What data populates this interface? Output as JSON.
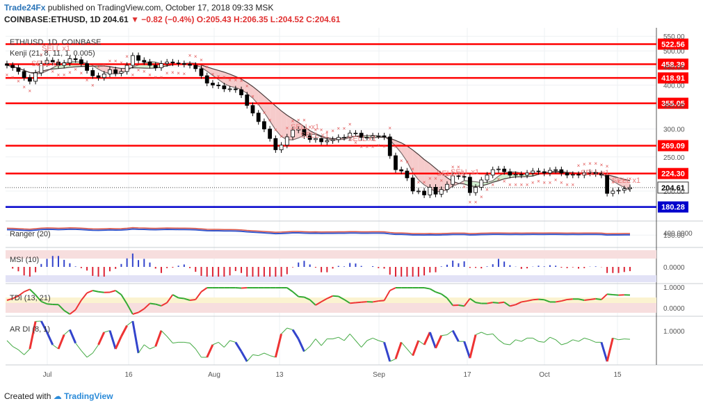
{
  "header": {
    "publisher": "Trade24Fx",
    "published_text": "published on TradingView.com, October 17, 2018 09:33 MSK",
    "symbol": "COINBASE:ETHUSD, 1D",
    "last": "204.61",
    "change": "▼ −0.82 (−0.4%)",
    "ohlc": "O:205.43 H:206.35 L:204.52 C:204.61"
  },
  "chart_labels": {
    "title": "ETH/USD, 1D, COINBASE",
    "kenji": "Kenji (21, 8, 11, 1, 0.005)",
    "ranger": "Ranger (20)",
    "msi": "MSI (10)",
    "tdi": "TDI (13, 21)",
    "ardi": "AR DI (8, 1)",
    "sell": "SELL x1"
  },
  "footer": {
    "created": "Created with",
    "brand": "TradingView"
  },
  "colors": {
    "resistance": "#ff0000",
    "support": "#0000cc",
    "cloud_red": "#f4c2c2",
    "cloud_green": "#c8ecc8"
  },
  "chart_data": [
    {
      "type": "candlestick",
      "title": "ETH/USD, 1D, COINBASE",
      "price_axis_ticks": [
        550,
        500,
        450,
        400,
        350,
        300,
        250,
        200,
        150
      ],
      "date_axis_ticks": [
        "Jul",
        "16",
        "Aug",
        "13",
        "Sep",
        "17",
        "Oct",
        "15"
      ],
      "horizontal_levels": [
        522.56,
        458.39,
        418.91,
        355.05,
        269.09,
        224.3,
        180.28
      ],
      "support_level": 180.28,
      "current_price": 204.61,
      "close_series": [
        455,
        448,
        437,
        420,
        410,
        433,
        460,
        470,
        465,
        455,
        462,
        475,
        472,
        460,
        440,
        425,
        420,
        430,
        442,
        432,
        437,
        455,
        485,
        470,
        465,
        455,
        448,
        460,
        465,
        462,
        460,
        458,
        455,
        445,
        425,
        405,
        400,
        398,
        390,
        390,
        388,
        375,
        350,
        333,
        315,
        300,
        282,
        262,
        270,
        285,
        298,
        300,
        287,
        280,
        282,
        276,
        278,
        280,
        284,
        284,
        292,
        292,
        284,
        284,
        287,
        287,
        285,
        252,
        230,
        228,
        218,
        200,
        200,
        195,
        205,
        196,
        202,
        209,
        221,
        220,
        219,
        198,
        205,
        215,
        222,
        230,
        231,
        227,
        222,
        223,
        222,
        225,
        228,
        227,
        225,
        229,
        230,
        225,
        222,
        223,
        222,
        225,
        226,
        224,
        222,
        197,
        200,
        201,
        203,
        204.61
      ],
      "sell_signal_count": 9
    },
    {
      "type": "line",
      "title": "Ranger (20)",
      "y_axis_ticks": [
        "400.0000"
      ]
    },
    {
      "type": "bar",
      "title": "MSI (10)",
      "y_axis_ticks": [
        "0.0000"
      ]
    },
    {
      "type": "line",
      "title": "TDI (13, 21)",
      "y_axis_ticks": [
        "1.0000",
        "0.0000"
      ]
    },
    {
      "type": "line",
      "title": "AR DI (8, 1)",
      "y_axis_ticks": [
        "1.0000"
      ]
    }
  ]
}
